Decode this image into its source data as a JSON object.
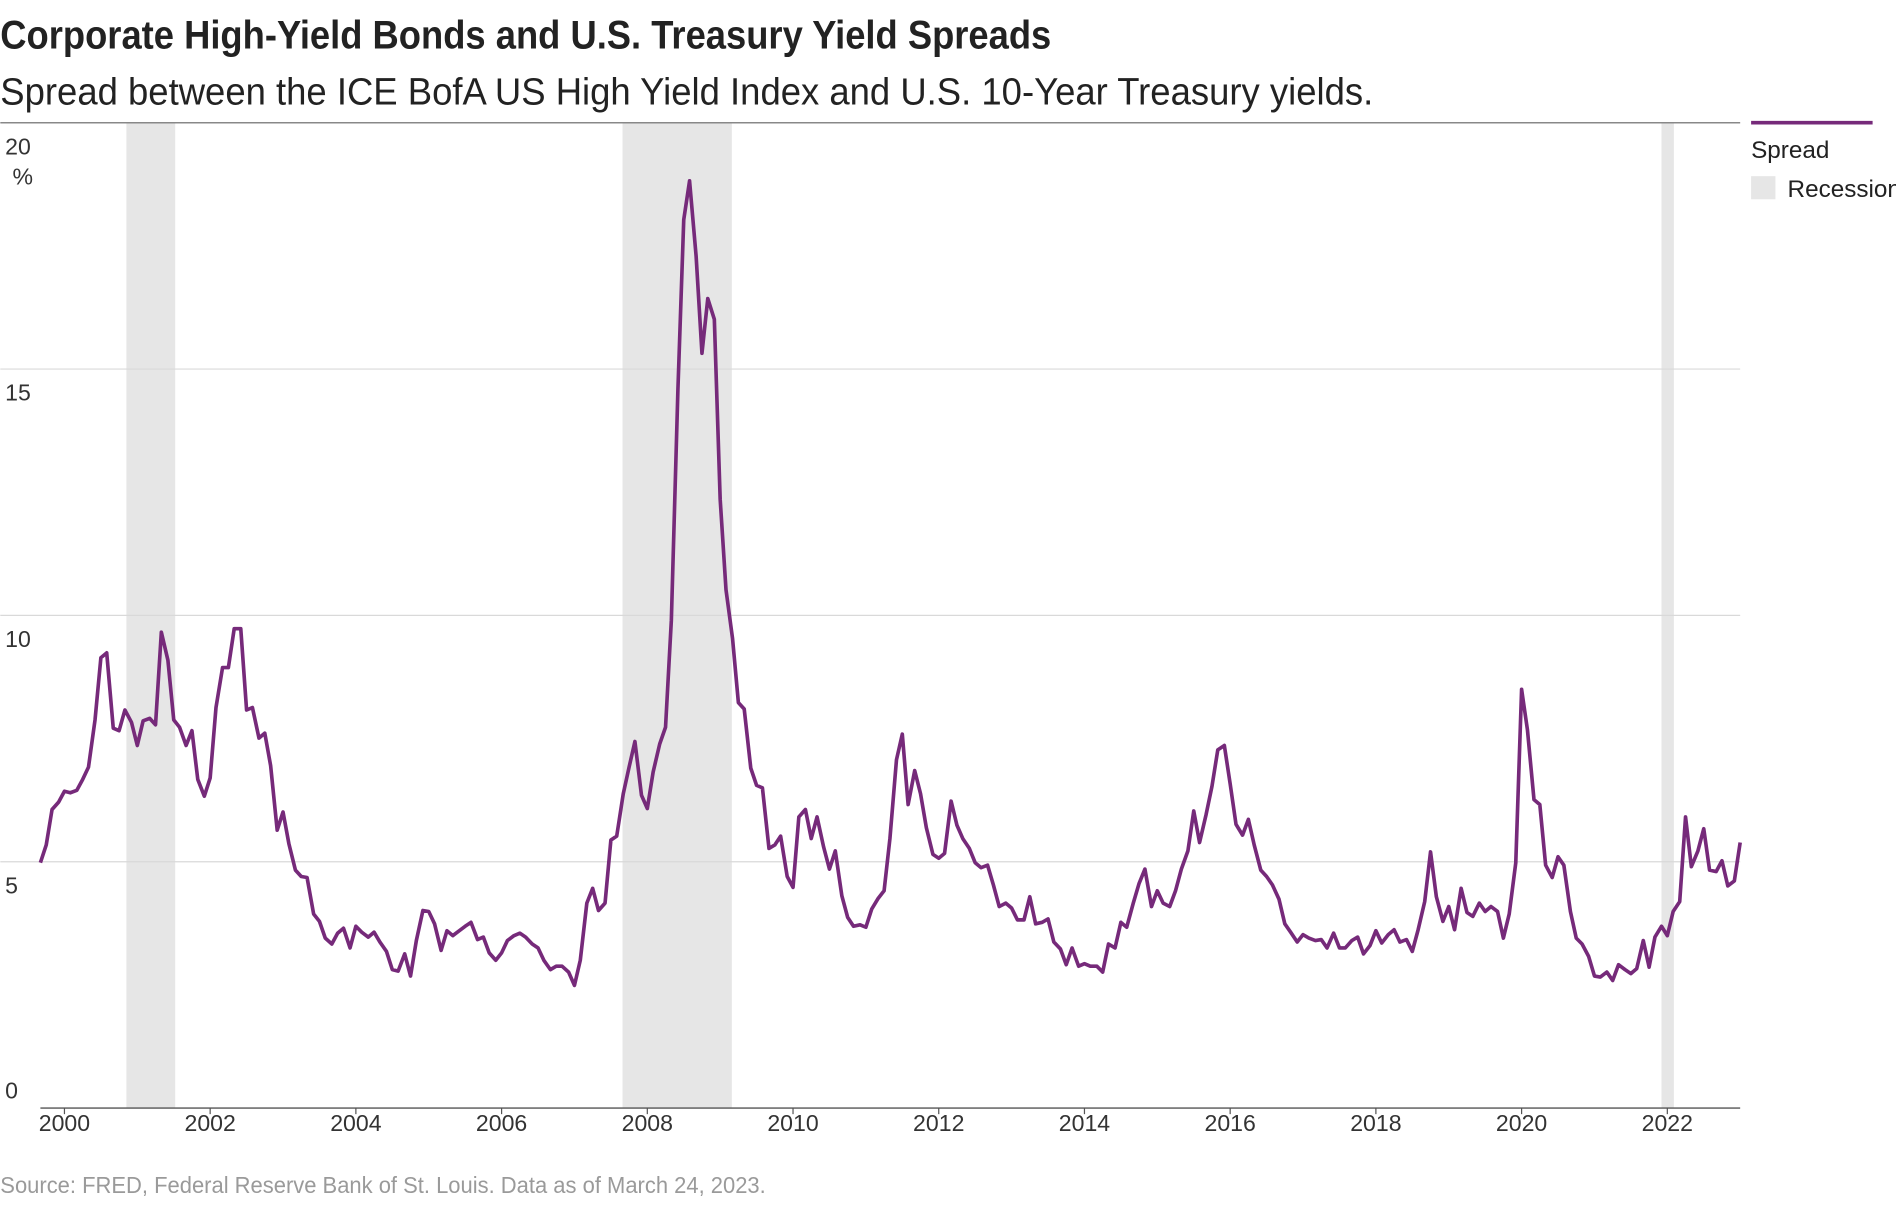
{
  "chart_data": {
    "type": "line",
    "title": "Corporate High-Yield Bonds and U.S. Treasury Yield Spreads",
    "subtitle": "Spread between the ICE BofA US High Yield Index and U.S. 10-Year Treasury yields.",
    "source": "Source: FRED, Federal Reserve Bank of St. Louis. Data as of March 24, 2023.",
    "y_unit": "%",
    "xlim": [
      1999.67,
      2023.0
    ],
    "xticks": [
      2000,
      2002,
      2004,
      2006,
      2008,
      2010,
      2012,
      2014,
      2016,
      2018,
      2020,
      2022
    ],
    "ylim": [
      0,
      20
    ],
    "yticks": [
      0,
      5,
      10,
      15,
      20
    ],
    "grid": true,
    "legend": "top-right",
    "recession": {
      "name": "Recession",
      "color": "#e6e6e6",
      "ranges": [
        [
          2000.85,
          2001.52
        ],
        [
          2007.66,
          2009.16
        ],
        [
          2021.92,
          2022.09
        ]
      ]
    },
    "x": [
      1999.67,
      1999.75,
      1999.83,
      1999.92,
      2000,
      2000.08,
      2000.17,
      2000.25,
      2000.33,
      2000.42,
      2000.5,
      2000.58,
      2000.67,
      2000.75,
      2000.83,
      2000.92,
      2001,
      2001.08,
      2001.17,
      2001.25,
      2001.33,
      2001.42,
      2001.5,
      2001.58,
      2001.67,
      2001.75,
      2001.83,
      2001.92,
      2002,
      2002.08,
      2002.17,
      2002.25,
      2002.33,
      2002.42,
      2002.5,
      2002.58,
      2002.67,
      2002.75,
      2002.83,
      2002.92,
      2003,
      2003.08,
      2003.17,
      2003.25,
      2003.33,
      2003.42,
      2003.5,
      2003.58,
      2003.67,
      2003.75,
      2003.83,
      2003.92,
      2004,
      2004.08,
      2004.17,
      2004.25,
      2004.33,
      2004.42,
      2004.5,
      2004.58,
      2004.67,
      2004.75,
      2004.83,
      2004.92,
      2005,
      2005.08,
      2005.17,
      2005.25,
      2005.33,
      2005.42,
      2005.5,
      2005.58,
      2005.67,
      2005.75,
      2005.83,
      2005.92,
      2006,
      2006.08,
      2006.17,
      2006.25,
      2006.33,
      2006.42,
      2006.5,
      2006.58,
      2006.67,
      2006.75,
      2006.83,
      2006.92,
      2007,
      2007.08,
      2007.17,
      2007.25,
      2007.33,
      2007.42,
      2007.5,
      2007.58,
      2007.67,
      2007.75,
      2007.83,
      2007.92,
      2008,
      2008.08,
      2008.17,
      2008.25,
      2008.33,
      2008.42,
      2008.5,
      2008.58,
      2008.67,
      2008.75,
      2008.83,
      2008.92,
      2009,
      2009.08,
      2009.17,
      2009.25,
      2009.33,
      2009.42,
      2009.5,
      2009.58,
      2009.67,
      2009.75,
      2009.83,
      2009.92,
      2010,
      2010.08,
      2010.17,
      2010.25,
      2010.33,
      2010.42,
      2010.5,
      2010.58,
      2010.67,
      2010.75,
      2010.83,
      2010.92,
      2011,
      2011.08,
      2011.17,
      2011.25,
      2011.33,
      2011.42,
      2011.5,
      2011.58,
      2011.67,
      2011.75,
      2011.83,
      2011.92,
      2012,
      2012.08,
      2012.17,
      2012.25,
      2012.33,
      2012.42,
      2012.5,
      2012.58,
      2012.67,
      2012.75,
      2012.83,
      2012.92,
      2013,
      2013.08,
      2013.17,
      2013.25,
      2013.33,
      2013.42,
      2013.5,
      2013.58,
      2013.67,
      2013.75,
      2013.83,
      2013.92,
      2014,
      2014.08,
      2014.17,
      2014.25,
      2014.33,
      2014.42,
      2014.5,
      2014.58,
      2014.67,
      2014.75,
      2014.83,
      2014.92,
      2015,
      2015.08,
      2015.17,
      2015.25,
      2015.33,
      2015.42,
      2015.5,
      2015.58,
      2015.67,
      2015.75,
      2015.83,
      2015.92,
      2016,
      2016.08,
      2016.17,
      2016.25,
      2016.33,
      2016.42,
      2016.5,
      2016.58,
      2016.67,
      2016.75,
      2016.83,
      2016.92,
      2017,
      2017.08,
      2017.17,
      2017.25,
      2017.33,
      2017.42,
      2017.5,
      2017.58,
      2017.67,
      2017.75,
      2017.83,
      2017.92,
      2018,
      2018.08,
      2018.17,
      2018.25,
      2018.33,
      2018.42,
      2018.5,
      2018.58,
      2018.67,
      2018.75,
      2018.83,
      2018.92,
      2019,
      2019.08,
      2019.17,
      2019.25,
      2019.33,
      2019.42,
      2019.5,
      2019.58,
      2019.67,
      2019.75,
      2019.83,
      2019.92,
      2020,
      2020.08,
      2020.17,
      2020.25,
      2020.33,
      2020.42,
      2020.5,
      2020.58,
      2020.67,
      2020.75,
      2020.83,
      2020.92,
      2021,
      2021.08,
      2021.17,
      2021.25,
      2021.33,
      2021.42,
      2021.5,
      2021.58,
      2021.67,
      2021.75,
      2021.83,
      2021.92,
      2022,
      2022.08,
      2022.17,
      2022.25,
      2022.33,
      2022.42,
      2022.5,
      2022.58,
      2022.67,
      2022.75,
      2022.83,
      2022.92,
      2023
    ],
    "series": [
      {
        "name": "Spread",
        "color": "#762a7a",
        "values": [
          4.98,
          5.34,
          6.06,
          6.21,
          6.43,
          6.4,
          6.45,
          6.67,
          6.92,
          7.88,
          9.14,
          9.24,
          7.71,
          7.66,
          8.08,
          7.83,
          7.36,
          7.86,
          7.91,
          7.78,
          9.66,
          9.09,
          7.88,
          7.73,
          7.36,
          7.66,
          6.67,
          6.33,
          6.7,
          8.13,
          8.94,
          8.94,
          9.73,
          9.73,
          8.08,
          8.13,
          7.51,
          7.61,
          6.95,
          5.64,
          6.01,
          5.37,
          4.83,
          4.7,
          4.68,
          3.94,
          3.79,
          3.45,
          3.33,
          3.55,
          3.65,
          3.25,
          3.69,
          3.57,
          3.47,
          3.57,
          3.37,
          3.18,
          2.81,
          2.78,
          3.13,
          2.68,
          3.4,
          4.01,
          3.99,
          3.74,
          3.2,
          3.6,
          3.5,
          3.6,
          3.69,
          3.77,
          3.42,
          3.47,
          3.15,
          3.0,
          3.15,
          3.4,
          3.5,
          3.55,
          3.47,
          3.33,
          3.25,
          3.0,
          2.81,
          2.88,
          2.88,
          2.76,
          2.49,
          3.0,
          4.16,
          4.46,
          4.01,
          4.16,
          5.44,
          5.52,
          6.38,
          6.92,
          7.44,
          6.35,
          6.08,
          6.82,
          7.39,
          7.73,
          9.9,
          14.58,
          18.03,
          18.82,
          17.29,
          15.32,
          16.43,
          16.01,
          12.36,
          10.52,
          9.53,
          8.23,
          8.1,
          6.9,
          6.55,
          6.5,
          5.27,
          5.34,
          5.52,
          4.7,
          4.48,
          5.91,
          6.06,
          5.47,
          5.91,
          5.3,
          4.85,
          5.22,
          4.31,
          3.87,
          3.69,
          3.72,
          3.67,
          4.04,
          4.26,
          4.41,
          5.47,
          7.07,
          7.59,
          6.16,
          6.85,
          6.38,
          5.69,
          5.15,
          5.07,
          5.17,
          6.23,
          5.74,
          5.47,
          5.27,
          4.98,
          4.88,
          4.93,
          4.53,
          4.09,
          4.16,
          4.06,
          3.82,
          3.82,
          4.29,
          3.74,
          3.77,
          3.84,
          3.37,
          3.23,
          2.91,
          3.25,
          2.88,
          2.93,
          2.88,
          2.88,
          2.76,
          3.33,
          3.25,
          3.77,
          3.67,
          4.16,
          4.56,
          4.85,
          4.09,
          4.41,
          4.16,
          4.09,
          4.41,
          4.85,
          5.22,
          6.03,
          5.39,
          5.96,
          6.53,
          7.27,
          7.36,
          6.58,
          5.76,
          5.54,
          5.86,
          5.34,
          4.83,
          4.7,
          4.53,
          4.24,
          3.74,
          3.57,
          3.37,
          3.52,
          3.45,
          3.4,
          3.42,
          3.25,
          3.55,
          3.25,
          3.25,
          3.4,
          3.47,
          3.13,
          3.3,
          3.6,
          3.35,
          3.52,
          3.62,
          3.37,
          3.42,
          3.18,
          3.62,
          4.19,
          5.2,
          4.29,
          3.79,
          4.09,
          3.62,
          4.46,
          3.97,
          3.89,
          4.16,
          3.99,
          4.09,
          3.99,
          3.45,
          3.94,
          4.98,
          8.5,
          7.68,
          6.26,
          6.16,
          4.93,
          4.68,
          5.1,
          4.93,
          3.99,
          3.45,
          3.33,
          3.08,
          2.68,
          2.66,
          2.76,
          2.59,
          2.91,
          2.81,
          2.73,
          2.83,
          3.4,
          2.86,
          3.47,
          3.69,
          3.5,
          3.99,
          4.19,
          5.91,
          4.9,
          5.22,
          5.67,
          4.83,
          4.8,
          5.02,
          4.51,
          4.61,
          5.39
        ]
      }
    ]
  }
}
